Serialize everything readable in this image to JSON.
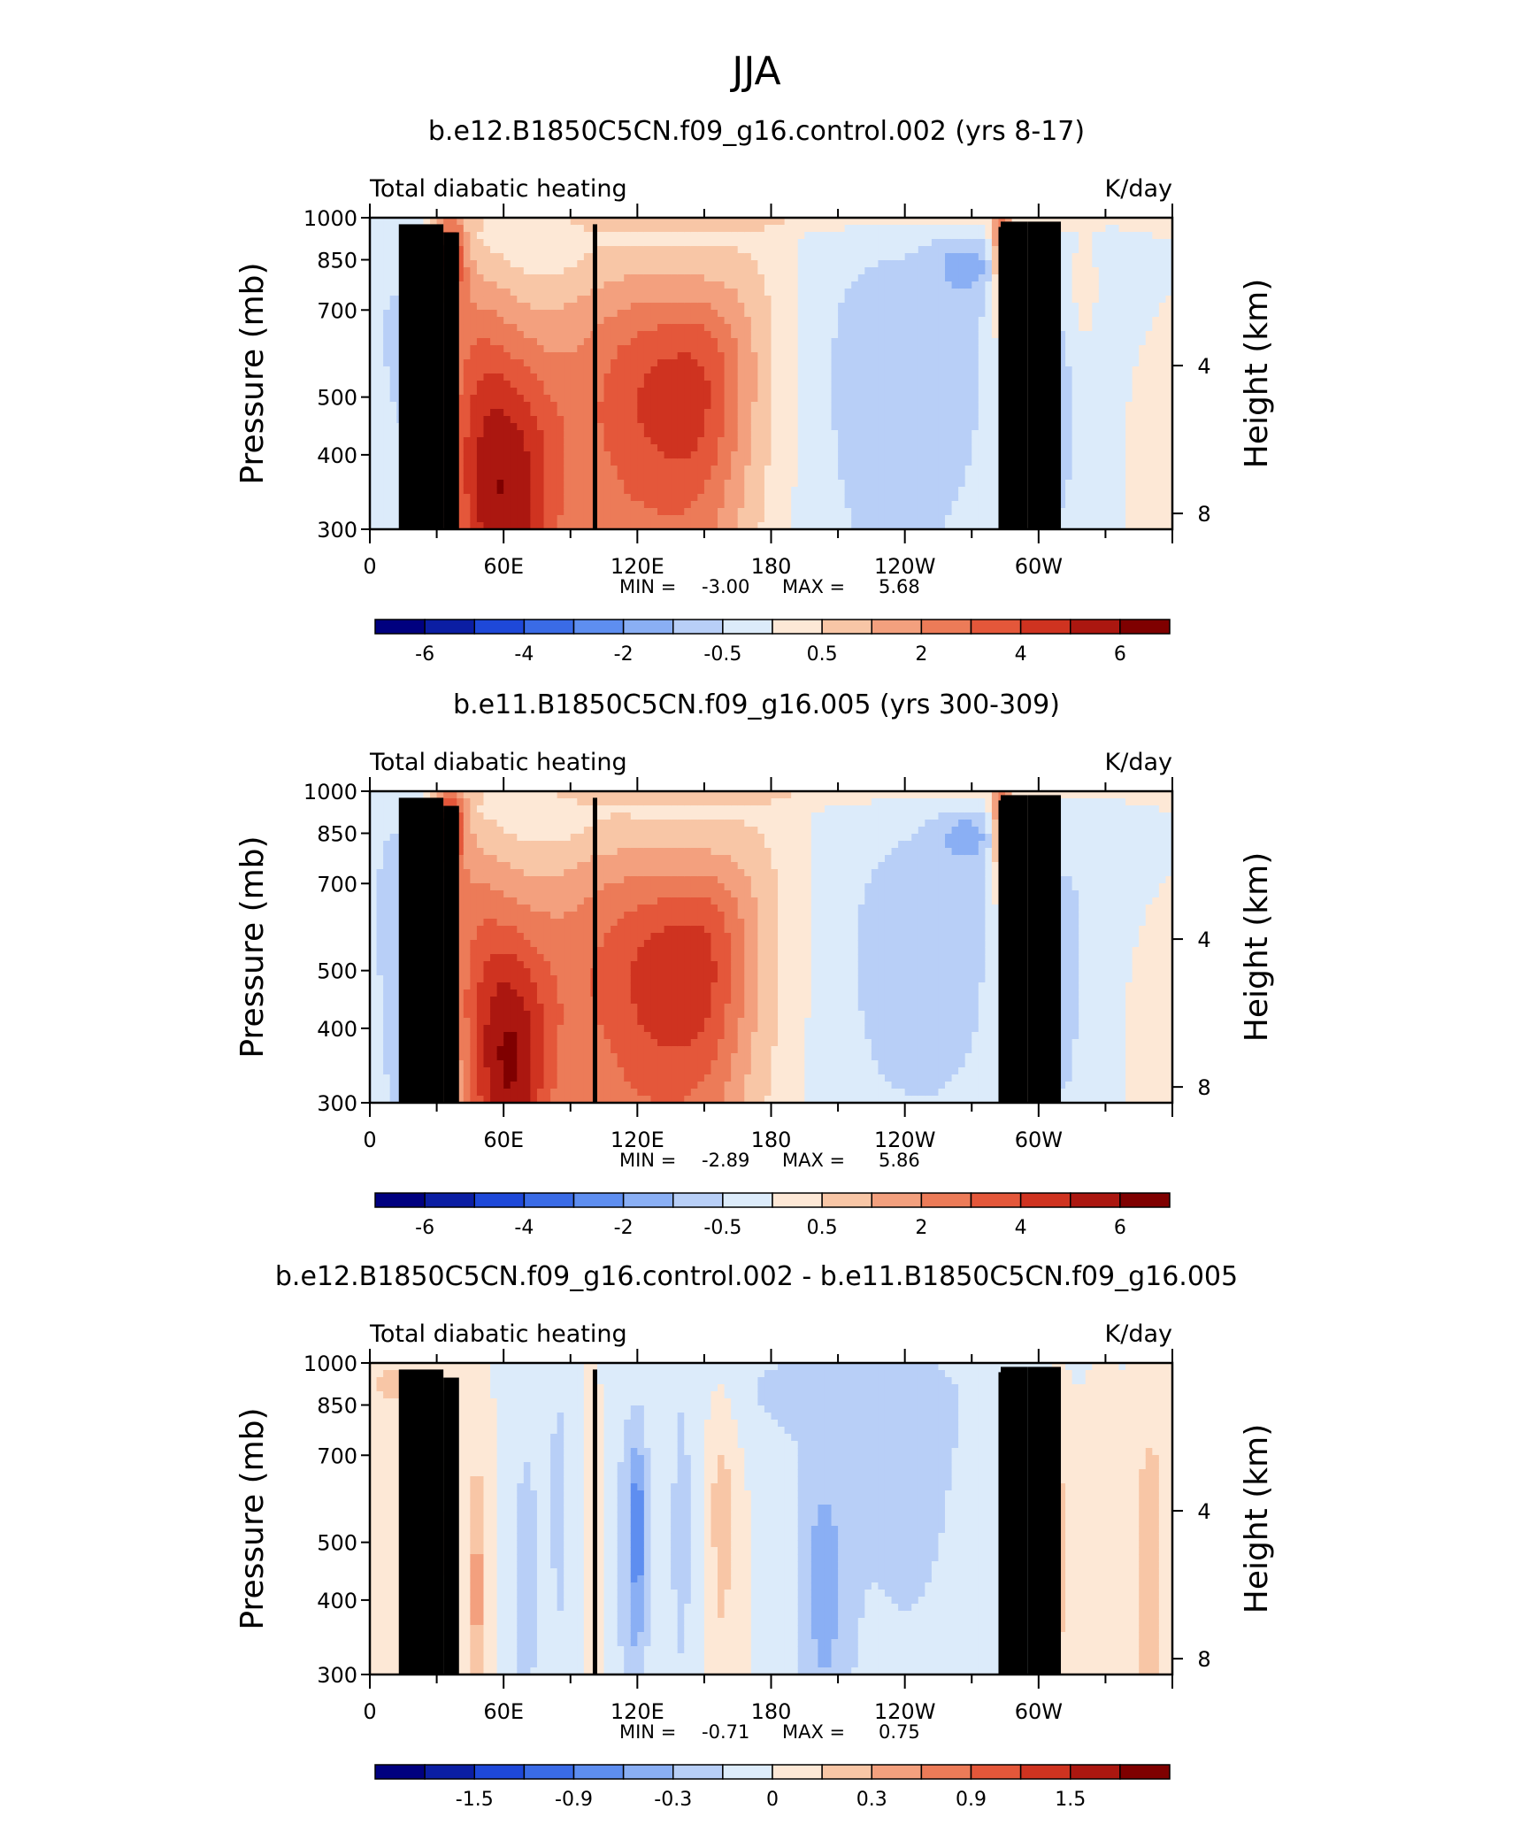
{
  "title": "JJA",
  "colors": {
    "blues": [
      "#00007f",
      "#0b1ea3",
      "#1e48d8",
      "#3a6be6",
      "#5e8ef0",
      "#8aaff4",
      "#b8cff7",
      "#dcebfa"
    ],
    "reds": [
      "#fde8d6",
      "#f8c6a6",
      "#f3a07e",
      "#ec7b58",
      "#e4573a",
      "#cf3320",
      "#ab1710",
      "#7f0000"
    ],
    "topo": "#000000"
  },
  "chart_data": [
    {
      "type": "heatmap",
      "title": "b.e12.B1850C5CN.f09_g16.control.002 (yrs 8-17)",
      "left_label": "Total diabatic heating",
      "right_label": "K/day",
      "ylabel": "Pressure (mb)",
      "y2label": "Height (km)",
      "yticks": [
        "300",
        "400",
        "500",
        "700",
        "850",
        "1000"
      ],
      "y2ticks": [
        "8",
        "4"
      ],
      "xticks": [
        "0",
        "60E",
        "120E",
        "180",
        "120W",
        "60W"
      ],
      "xlim": [
        0,
        360
      ],
      "ylim": [
        1000,
        300
      ],
      "stats": {
        "min_label": "MIN =",
        "min": "-3.00",
        "max_label": "MAX =",
        "max": "5.68"
      },
      "colorbar": {
        "levels": 16,
        "labels": [
          "-6",
          "-4",
          "-2",
          "-0.5",
          "0.5",
          "2",
          "4",
          "6"
        ]
      },
      "features": [
        {
          "lon": 60,
          "p": 300,
          "v": 4.0,
          "w": 25,
          "h": 220
        },
        {
          "lon": 65,
          "p": 450,
          "v": 3.0,
          "w": 30,
          "h": 320
        },
        {
          "lon": 45,
          "p": 600,
          "v": 2.0,
          "w": 18,
          "h": 300
        },
        {
          "lon": 36,
          "p": 870,
          "v": 5.0,
          "w": 7,
          "h": 150
        },
        {
          "lon": 128,
          "p": 480,
          "v": 3.5,
          "w": 25,
          "h": 300
        },
        {
          "lon": 150,
          "p": 500,
          "v": 3.0,
          "w": 20,
          "h": 280
        },
        {
          "lon": 105,
          "p": 500,
          "v": 2.0,
          "w": 25,
          "h": 400
        },
        {
          "lon": 170,
          "p": 600,
          "v": 1.2,
          "w": 22,
          "h": 400
        },
        {
          "lon": 22,
          "p": 500,
          "v": -1.6,
          "w": 12,
          "h": 500
        },
        {
          "lon": 5,
          "p": 650,
          "v": -0.8,
          "w": 10,
          "h": 600
        },
        {
          "lon": 250,
          "p": 570,
          "v": -1.5,
          "w": 40,
          "h": 420
        },
        {
          "lon": 268,
          "p": 830,
          "v": -1.8,
          "w": 14,
          "h": 90
        },
        {
          "lon": 212,
          "p": 500,
          "v": -0.6,
          "w": 25,
          "h": 500
        },
        {
          "lon": 80,
          "p": 870,
          "v": -0.3,
          "w": 20,
          "h": 80
        },
        {
          "lon": 283,
          "p": 900,
          "v": 4.0,
          "w": 4,
          "h": 200
        },
        {
          "lon": 292,
          "p": 550,
          "v": 1.5,
          "w": 10,
          "h": 400
        },
        {
          "lon": 308,
          "p": 500,
          "v": -1.0,
          "w": 10,
          "h": 300
        },
        {
          "lon": 325,
          "p": 600,
          "v": -0.6,
          "w": 20,
          "h": 500
        },
        {
          "lon": 345,
          "p": 400,
          "v": 0.4,
          "w": 18,
          "h": 250
        },
        {
          "lon": 320,
          "p": 740,
          "v": 1.0,
          "w": 8,
          "h": 200
        },
        {
          "lon": 180,
          "p": 985,
          "v": 0.8,
          "w": 180,
          "h": 40
        }
      ]
    },
    {
      "type": "heatmap",
      "title": "b.e11.B1850C5CN.f09_g16.005 (yrs 300-309)",
      "left_label": "Total diabatic heating",
      "right_label": "K/day",
      "ylabel": "Pressure (mb)",
      "y2label": "Height (km)",
      "yticks": [
        "300",
        "400",
        "500",
        "700",
        "850",
        "1000"
      ],
      "y2ticks": [
        "8",
        "4"
      ],
      "xticks": [
        "0",
        "60E",
        "120E",
        "180",
        "120W",
        "60W"
      ],
      "xlim": [
        0,
        360
      ],
      "ylim": [
        1000,
        300
      ],
      "stats": {
        "min_label": "MIN =",
        "min": "-2.89",
        "max_label": "MAX =",
        "max": "5.86"
      },
      "colorbar": {
        "levels": 16,
        "labels": [
          "-6",
          "-4",
          "-2",
          "-0.5",
          "0.5",
          "2",
          "4",
          "6"
        ]
      },
      "features": [
        {
          "lon": 62,
          "p": 320,
          "v": 4.2,
          "w": 18,
          "h": 200
        },
        {
          "lon": 68,
          "p": 460,
          "v": 3.0,
          "w": 30,
          "h": 320
        },
        {
          "lon": 45,
          "p": 600,
          "v": 2.0,
          "w": 18,
          "h": 300
        },
        {
          "lon": 36,
          "p": 880,
          "v": 5.2,
          "w": 7,
          "h": 150
        },
        {
          "lon": 130,
          "p": 470,
          "v": 3.8,
          "w": 25,
          "h": 300
        },
        {
          "lon": 152,
          "p": 500,
          "v": 3.0,
          "w": 20,
          "h": 280
        },
        {
          "lon": 105,
          "p": 500,
          "v": 2.2,
          "w": 25,
          "h": 400
        },
        {
          "lon": 172,
          "p": 600,
          "v": 1.2,
          "w": 22,
          "h": 400
        },
        {
          "lon": 20,
          "p": 500,
          "v": -1.6,
          "w": 12,
          "h": 500
        },
        {
          "lon": 5,
          "p": 650,
          "v": -0.8,
          "w": 10,
          "h": 600
        },
        {
          "lon": 258,
          "p": 580,
          "v": -1.4,
          "w": 36,
          "h": 420
        },
        {
          "lon": 268,
          "p": 840,
          "v": -1.8,
          "w": 12,
          "h": 80
        },
        {
          "lon": 220,
          "p": 500,
          "v": -0.6,
          "w": 25,
          "h": 500
        },
        {
          "lon": 85,
          "p": 860,
          "v": -0.3,
          "w": 20,
          "h": 80
        },
        {
          "lon": 283,
          "p": 900,
          "v": 4.0,
          "w": 4,
          "h": 200
        },
        {
          "lon": 292,
          "p": 550,
          "v": 1.5,
          "w": 10,
          "h": 400
        },
        {
          "lon": 310,
          "p": 500,
          "v": -1.0,
          "w": 10,
          "h": 300
        },
        {
          "lon": 326,
          "p": 600,
          "v": -0.6,
          "w": 20,
          "h": 500
        },
        {
          "lon": 345,
          "p": 400,
          "v": 0.4,
          "w": 18,
          "h": 250
        },
        {
          "lon": 180,
          "p": 985,
          "v": 0.8,
          "w": 180,
          "h": 40
        }
      ]
    },
    {
      "type": "heatmap",
      "title": "b.e12.B1850C5CN.f09_g16.control.002 - b.e11.B1850C5CN.f09_g16.005",
      "left_label": "Total diabatic heating",
      "right_label": "K/day",
      "ylabel": "Pressure (mb)",
      "y2label": "Height (km)",
      "yticks": [
        "300",
        "400",
        "500",
        "700",
        "850",
        "1000"
      ],
      "y2ticks": [
        "8",
        "4"
      ],
      "xticks": [
        "0",
        "60E",
        "120E",
        "180",
        "120W",
        "60W"
      ],
      "xlim": [
        0,
        360
      ],
      "ylim": [
        1000,
        300
      ],
      "stats": {
        "min_label": "MIN =",
        "min": "-0.71",
        "max_label": "MAX =",
        "max": "0.75"
      },
      "colorbar": {
        "levels": 16,
        "labels": [
          "-1.5",
          "-0.9",
          "-0.3",
          "0",
          "0.3",
          "0.9",
          "1.5"
        ]
      },
      "features": [
        {
          "lon": 48,
          "p": 420,
          "v": 0.6,
          "w": 4,
          "h": 260
        },
        {
          "lon": 32,
          "p": 500,
          "v": 0.3,
          "w": 6,
          "h": 400
        },
        {
          "lon": 15,
          "p": 450,
          "v": 0.15,
          "w": 10,
          "h": 300
        },
        {
          "lon": 70,
          "p": 450,
          "v": -0.45,
          "w": 5,
          "h": 300
        },
        {
          "lon": 85,
          "p": 600,
          "v": -0.3,
          "w": 8,
          "h": 500
        },
        {
          "lon": 118,
          "p": 500,
          "v": -0.4,
          "w": 10,
          "h": 400
        },
        {
          "lon": 120,
          "p": 530,
          "v": -0.65,
          "w": 3,
          "h": 180
        },
        {
          "lon": 140,
          "p": 500,
          "v": -0.3,
          "w": 8,
          "h": 400
        },
        {
          "lon": 158,
          "p": 600,
          "v": 0.35,
          "w": 8,
          "h": 400
        },
        {
          "lon": 100,
          "p": 500,
          "v": 0.2,
          "w": 5,
          "h": 400
        },
        {
          "lon": 203,
          "p": 420,
          "v": -0.5,
          "w": 12,
          "h": 260
        },
        {
          "lon": 240,
          "p": 600,
          "v": -0.3,
          "w": 40,
          "h": 500
        },
        {
          "lon": 290,
          "p": 600,
          "v": -0.3,
          "w": 8,
          "h": 500
        },
        {
          "lon": 308,
          "p": 500,
          "v": 0.35,
          "w": 6,
          "h": 300
        },
        {
          "lon": 325,
          "p": 400,
          "v": 0.25,
          "w": 10,
          "h": 300
        },
        {
          "lon": 350,
          "p": 480,
          "v": 0.5,
          "w": 6,
          "h": 300
        },
        {
          "lon": 10,
          "p": 920,
          "v": 0.3,
          "w": 15,
          "h": 100
        },
        {
          "lon": 200,
          "p": 900,
          "v": -0.3,
          "w": 60,
          "h": 200
        }
      ]
    }
  ]
}
